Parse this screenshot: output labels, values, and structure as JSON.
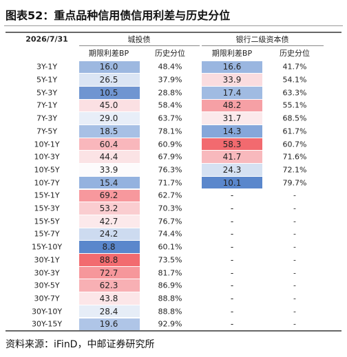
{
  "header": {
    "title": "图表52：重点品种信用债信用利差与历史分位"
  },
  "table": {
    "date": "2026/7/31",
    "groups": [
      "城投债",
      "银行二级资本债"
    ],
    "columns": [
      "期限利差BP",
      "历史分位",
      "期限利差BP",
      "历史分位"
    ],
    "rows": [
      [
        "3Y-1Y",
        "16.0",
        "48.4%",
        "16.6",
        "41.7%"
      ],
      [
        "5Y-1Y",
        "26.5",
        "37.9%",
        "33.9",
        "54.1%"
      ],
      [
        "5Y-3Y",
        "10.5",
        "28.8%",
        "17.4",
        "63.3%"
      ],
      [
        "7Y-1Y",
        "45.0",
        "58.4%",
        "48.2",
        "55.1%"
      ],
      [
        "7Y-3Y",
        "29.0",
        "63.7%",
        "31.7",
        "68.5%"
      ],
      [
        "7Y-5Y",
        "18.5",
        "78.1%",
        "14.3",
        "61.7%"
      ],
      [
        "10Y-1Y",
        "60.4",
        "60.9%",
        "58.3",
        "60.7%"
      ],
      [
        "10Y-3Y",
        "44.4",
        "67.9%",
        "41.7",
        "71.6%"
      ],
      [
        "10Y-5Y",
        "33.9",
        "76.3%",
        "24.3",
        "72.1%"
      ],
      [
        "10Y-7Y",
        "15.4",
        "71.7%",
        "10.1",
        "79.7%"
      ],
      [
        "15Y-1Y",
        "69.2",
        "62.7%",
        "-",
        "-"
      ],
      [
        "15Y-3Y",
        "53.2",
        "70.3%",
        "-",
        "-"
      ],
      [
        "15Y-5Y",
        "42.7",
        "76.7%",
        "-",
        "-"
      ],
      [
        "15Y-7Y",
        "24.2",
        "74.4%",
        "-",
        "-"
      ],
      [
        "15Y-10Y",
        "8.8",
        "60.1%",
        "-",
        "-"
      ],
      [
        "30Y-1Y",
        "88.8",
        "73.5%",
        "-",
        "-"
      ],
      [
        "30Y-3Y",
        "72.7",
        "81.7%",
        "-",
        "-"
      ],
      [
        "30Y-5Y",
        "62.3",
        "86.9%",
        "-",
        "-"
      ],
      [
        "30Y-7Y",
        "43.8",
        "88.8%",
        "-",
        "-"
      ],
      [
        "30Y-10Y",
        "28.4",
        "88.8%",
        "-",
        "-"
      ],
      [
        "30Y-15Y",
        "19.6",
        "92.9%",
        "-",
        "-"
      ]
    ],
    "colors": [
      [
        "#9db8e0",
        "#9ab6e0"
      ],
      [
        "#dbe5f4",
        "#fadcdf"
      ],
      [
        "#6f95d1",
        "#a0bbe2"
      ],
      [
        "#fbe0e3",
        "#f6a0a5"
      ],
      [
        "#e8eef8",
        "#fbe9eb"
      ],
      [
        "#a7c0e5",
        "#85a7da"
      ],
      [
        "#f9b7bc",
        "#f26a6f"
      ],
      [
        "#fbe3e5",
        "#f8b9bd"
      ],
      [
        "#fdfbfc",
        "#d5e1f2"
      ],
      [
        "#94b2df",
        "#5a87cc"
      ],
      [
        "#f7989d",
        null
      ],
      [
        "#facdd0",
        null
      ],
      [
        "#fce9eb",
        null
      ],
      [
        "#cddbf0",
        null
      ],
      [
        "#5a87cc",
        null
      ],
      [
        "#f26b6f",
        null
      ],
      [
        "#f6979b",
        null
      ],
      [
        "#f8b0b4",
        null
      ],
      [
        "#fce6e8",
        null
      ],
      [
        "#e6edf7",
        null
      ],
      [
        "#afc5e7",
        null
      ]
    ]
  },
  "footer": {
    "source": "资料来源：iFinD，中邮证券研究所"
  }
}
